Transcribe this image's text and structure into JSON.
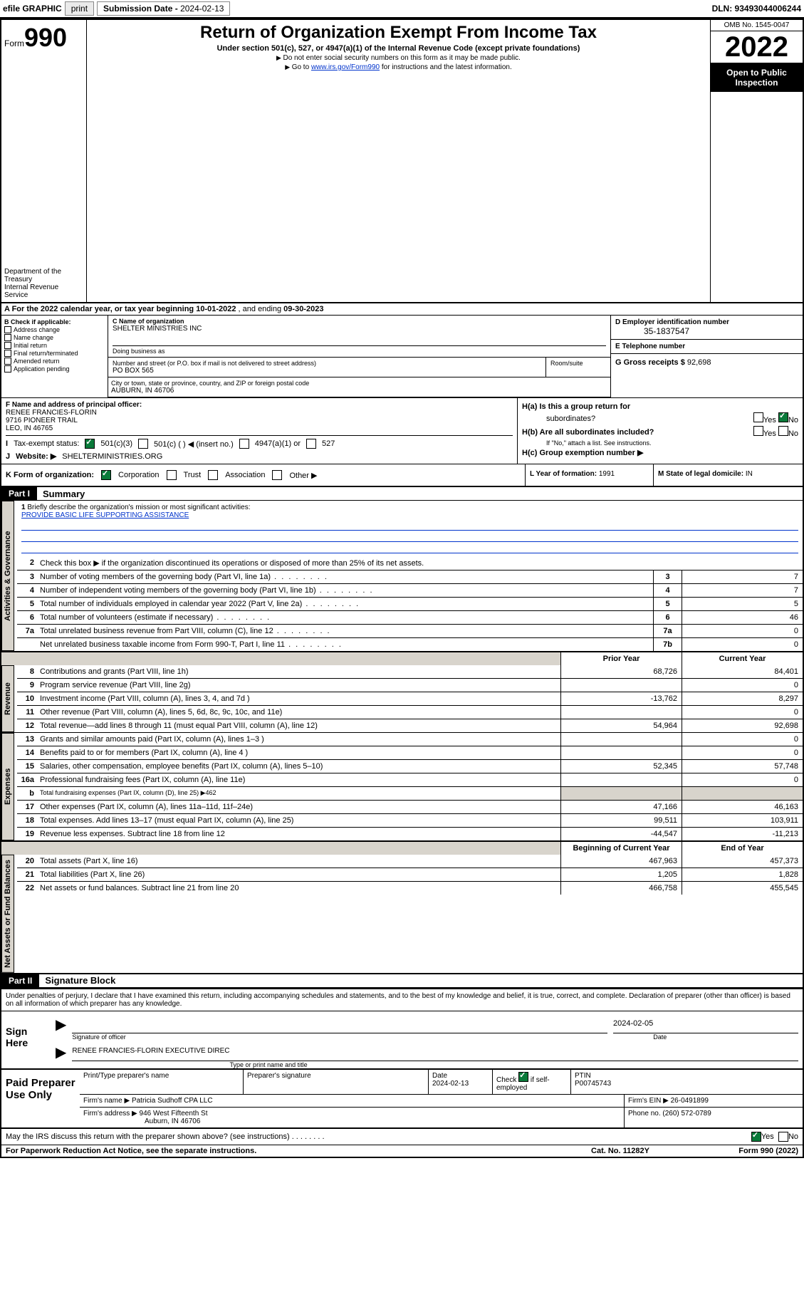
{
  "topbar": {
    "efile": "efile GRAPHIC",
    "print": "print",
    "subdate_label": "Submission Date - ",
    "subdate_val": "2024-02-13",
    "dln": "DLN: 93493044006244"
  },
  "header": {
    "form_word": "Form",
    "form_num": "990",
    "dept": "Department of the Treasury",
    "irs": "Internal Revenue Service",
    "title": "Return of Organization Exempt From Income Tax",
    "sub": "Under section 501(c), 527, or 4947(a)(1) of the Internal Revenue Code (except private foundations)",
    "ssn_note": "Do not enter social security numbers on this form as it may be made public.",
    "goto_pre": "Go to ",
    "goto_link": "www.irs.gov/Form990",
    "goto_post": " for instructions and the latest information.",
    "omb": "OMB No. 1545-0047",
    "year": "2022",
    "open1": "Open to Public",
    "open2": "Inspection"
  },
  "sectionA": {
    "text_a": "A For the 2022 calendar year, or tax year beginning ",
    "beg": "10-01-2022",
    "mid": " , and ending ",
    "end": "09-30-2023"
  },
  "B": {
    "label": "B Check if applicable:",
    "addr": "Address change",
    "name": "Name change",
    "init": "Initial return",
    "final": "Final return/terminated",
    "amend": "Amended return",
    "app": "Application pending"
  },
  "C": {
    "name_lbl": "C Name of organization",
    "name_val": "SHELTER MINISTRIES INC",
    "dba_lbl": "Doing business as",
    "street_lbl": "Number and street (or P.O. box if mail is not delivered to street address)",
    "room_lbl": "Room/suite",
    "street_val": "PO BOX 565",
    "city_lbl": "City or town, state or province, country, and ZIP or foreign postal code",
    "city_val": "AUBURN, IN  46706"
  },
  "D": {
    "lbl": "D Employer identification number",
    "val": "35-1837547"
  },
  "E": {
    "lbl": "E Telephone number",
    "val": ""
  },
  "G": {
    "lbl": "G Gross receipts $ ",
    "val": "92,698"
  },
  "F": {
    "lbl": "F Name and address of principal officer:",
    "name": "RENEE FRANCIES-FLORIN",
    "street": "9716 PIONEER TRAIL",
    "city": "LEO, IN  46765"
  },
  "H": {
    "a_lbl": "H(a)  Is this a group return for",
    "a_sub": "subordinates?",
    "b_lbl": "H(b)  Are all subordinates included?",
    "b_note": "If \"No,\" attach a list. See instructions.",
    "c_lbl": "H(c)  Group exemption number ▶",
    "yes": "Yes",
    "no": "No"
  },
  "I": {
    "lbl": "Tax-exempt status:",
    "c3": "501(c)(3)",
    "c": "501(c) (   ) ◀ (insert no.)",
    "a1": "4947(a)(1) or",
    "s527": "527"
  },
  "J": {
    "lbl": "Website: ▶",
    "val": "SHELTERMINISTRIES.ORG"
  },
  "K": {
    "lbl": "K Form of organization:",
    "corp": "Corporation",
    "trust": "Trust",
    "assoc": "Association",
    "other": "Other ▶"
  },
  "L": {
    "lbl": "L Year of formation: ",
    "val": "1991"
  },
  "M": {
    "lbl": "M State of legal domicile: ",
    "val": "IN"
  },
  "parts": {
    "p1": "Part I",
    "p1_title": "Summary",
    "p2": "Part II",
    "p2_title": "Signature Block"
  },
  "tabs": {
    "gov": "Activities & Governance",
    "rev": "Revenue",
    "exp": "Expenses",
    "net": "Net Assets or Fund Balances"
  },
  "summary": {
    "q1_lbl": "Briefly describe the organization's mission or most significant activities:",
    "q1_val": "PROVIDE BASIC LIFE SUPPORTING ASSISTANCE",
    "q2": "Check this box ▶      if the organization discontinued its operations or disposed of more than 25% of its net assets.",
    "rows": [
      {
        "n": "3",
        "d": "Number of voting members of the governing body (Part VI, line 1a)",
        "c": "3",
        "v": "7"
      },
      {
        "n": "4",
        "d": "Number of independent voting members of the governing body (Part VI, line 1b)",
        "c": "4",
        "v": "7"
      },
      {
        "n": "5",
        "d": "Total number of individuals employed in calendar year 2022 (Part V, line 2a)",
        "c": "5",
        "v": "5"
      },
      {
        "n": "6",
        "d": "Total number of volunteers (estimate if necessary)",
        "c": "6",
        "v": "46"
      },
      {
        "n": "7a",
        "d": "Total unrelated business revenue from Part VIII, column (C), line 12",
        "c": "7a",
        "v": "0"
      },
      {
        "n": "",
        "d": "Net unrelated business taxable income from Form 990-T, Part I, line 11",
        "c": "7b",
        "v": "0"
      }
    ],
    "hdr_prior": "Prior Year",
    "hdr_curr": "Current Year",
    "rev": [
      {
        "n": "8",
        "d": "Contributions and grants (Part VIII, line 1h)",
        "v1": "68,726",
        "v2": "84,401"
      },
      {
        "n": "9",
        "d": "Program service revenue (Part VIII, line 2g)",
        "v1": "",
        "v2": "0"
      },
      {
        "n": "10",
        "d": "Investment income (Part VIII, column (A), lines 3, 4, and 7d )",
        "v1": "-13,762",
        "v2": "8,297"
      },
      {
        "n": "11",
        "d": "Other revenue (Part VIII, column (A), lines 5, 6d, 8c, 9c, 10c, and 11e)",
        "v1": "",
        "v2": "0"
      },
      {
        "n": "12",
        "d": "Total revenue—add lines 8 through 11 (must equal Part VIII, column (A), line 12)",
        "v1": "54,964",
        "v2": "92,698"
      }
    ],
    "exp": [
      {
        "n": "13",
        "d": "Grants and similar amounts paid (Part IX, column (A), lines 1–3 )",
        "v1": "",
        "v2": "0"
      },
      {
        "n": "14",
        "d": "Benefits paid to or for members (Part IX, column (A), line 4 )",
        "v1": "",
        "v2": "0"
      },
      {
        "n": "15",
        "d": "Salaries, other compensation, employee benefits (Part IX, column (A), lines 5–10)",
        "v1": "52,345",
        "v2": "57,748"
      },
      {
        "n": "16a",
        "d": "Professional fundraising fees (Part IX, column (A), line 11e)",
        "v1": "",
        "v2": "0"
      }
    ],
    "exp_b": {
      "n": "b",
      "d": "Total fundraising expenses (Part IX, column (D), line 25) ▶462"
    },
    "exp2": [
      {
        "n": "17",
        "d": "Other expenses (Part IX, column (A), lines 11a–11d, 11f–24e)",
        "v1": "47,166",
        "v2": "46,163"
      },
      {
        "n": "18",
        "d": "Total expenses. Add lines 13–17 (must equal Part IX, column (A), line 25)",
        "v1": "99,511",
        "v2": "103,911"
      },
      {
        "n": "19",
        "d": "Revenue less expenses. Subtract line 18 from line 12",
        "v1": "-44,547",
        "v2": "-11,213"
      }
    ],
    "hdr_beg": "Beginning of Current Year",
    "hdr_end": "End of Year",
    "net": [
      {
        "n": "20",
        "d": "Total assets (Part X, line 16)",
        "v1": "467,963",
        "v2": "457,373"
      },
      {
        "n": "21",
        "d": "Total liabilities (Part X, line 26)",
        "v1": "1,205",
        "v2": "1,828"
      },
      {
        "n": "22",
        "d": "Net assets or fund balances. Subtract line 21 from line 20",
        "v1": "466,758",
        "v2": "455,545"
      }
    ]
  },
  "sig": {
    "intro": "Under penalties of perjury, I declare that I have examined this return, including accompanying schedules and statements, and to the best of my knowledge and belief, it is true, correct, and complete. Declaration of preparer (other than officer) is based on all information of which preparer has any knowledge.",
    "sign_here": "Sign Here",
    "sig_of_off": "Signature of officer",
    "date_lbl": "Date",
    "date_val": "2024-02-05",
    "name_title": "RENEE FRANCIES-FLORIN  EXECUTIVE DIREC",
    "type_name": "Type or print name and title"
  },
  "paid": {
    "title": "Paid Preparer Use Only",
    "h_name": "Print/Type preparer's name",
    "h_sig": "Preparer's signature",
    "h_date": "Date",
    "date_val": "2024-02-13",
    "check_lbl": "Check",
    "check_if": "if self-employed",
    "ptin_lbl": "PTIN",
    "ptin_val": "P00745743",
    "firm_name_lbl": "Firm's name    ▶",
    "firm_name_val": "Patricia Sudhoff CPA LLC",
    "firm_ein_lbl": "Firm's EIN ▶",
    "firm_ein_val": "26-0491899",
    "firm_addr_lbl": "Firm's address ▶",
    "firm_addr_val1": "946 West Fifteenth St",
    "firm_addr_val2": "Auburn, IN  46706",
    "phone_lbl": "Phone no. ",
    "phone_val": "(260) 572-0789"
  },
  "footer": {
    "discuss": "May the IRS discuss this return with the preparer shown above? (see instructions)",
    "yes": "Yes",
    "no": "No",
    "paperwork": "For Paperwork Reduction Act Notice, see the separate instructions.",
    "cat": "Cat. No. 11282Y",
    "formno": "Form 990 (2022)"
  }
}
